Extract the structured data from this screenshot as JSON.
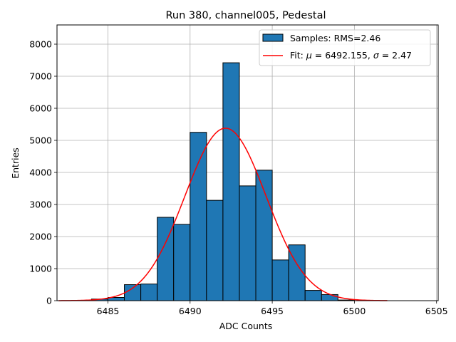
{
  "chart_data": {
    "type": "bar",
    "title": "Run 380, channel005, Pedestal",
    "xlabel": "ADC Counts",
    "ylabel": "Entries",
    "xlim": [
      6481.9,
      6505.1
    ],
    "ylim": [
      0,
      8600
    ],
    "xticks": [
      6485,
      6490,
      6495,
      6500,
      6505
    ],
    "yticks": [
      0,
      1000,
      2000,
      3000,
      4000,
      5000,
      6000,
      7000,
      8000
    ],
    "grid": true,
    "legend_position": "top-right",
    "bin_width": 1,
    "bins": [
      {
        "left": 6484,
        "value": 50
      },
      {
        "left": 6485,
        "value": 100
      },
      {
        "left": 6486,
        "value": 500
      },
      {
        "left": 6487,
        "value": 520
      },
      {
        "left": 6488,
        "value": 2600
      },
      {
        "left": 6489,
        "value": 2380
      },
      {
        "left": 6490,
        "value": 5250
      },
      {
        "left": 6491,
        "value": 3130
      },
      {
        "left": 6492,
        "value": 7420
      },
      {
        "left": 6493,
        "value": 3580
      },
      {
        "left": 6494,
        "value": 4070
      },
      {
        "left": 6495,
        "value": 1270
      },
      {
        "left": 6496,
        "value": 1740
      },
      {
        "left": 6497,
        "value": 320
      },
      {
        "left": 6498,
        "value": 190
      },
      {
        "left": 6499,
        "value": 20
      }
    ],
    "fit": {
      "mu": 6492.155,
      "sigma": 2.47,
      "amplitude": 5380,
      "x_range": [
        6482,
        6502
      ]
    },
    "series": [
      {
        "name": "Samples: RMS=2.46",
        "kind": "histogram",
        "color": "#1f77b4"
      },
      {
        "name_prefix": "Fit: ",
        "mu_symbol": "μ",
        "mu_text": " = 6492.155, ",
        "sigma_symbol": "σ",
        "sigma_text": " = 2.47",
        "kind": "line",
        "color": "#ff0000"
      }
    ]
  }
}
